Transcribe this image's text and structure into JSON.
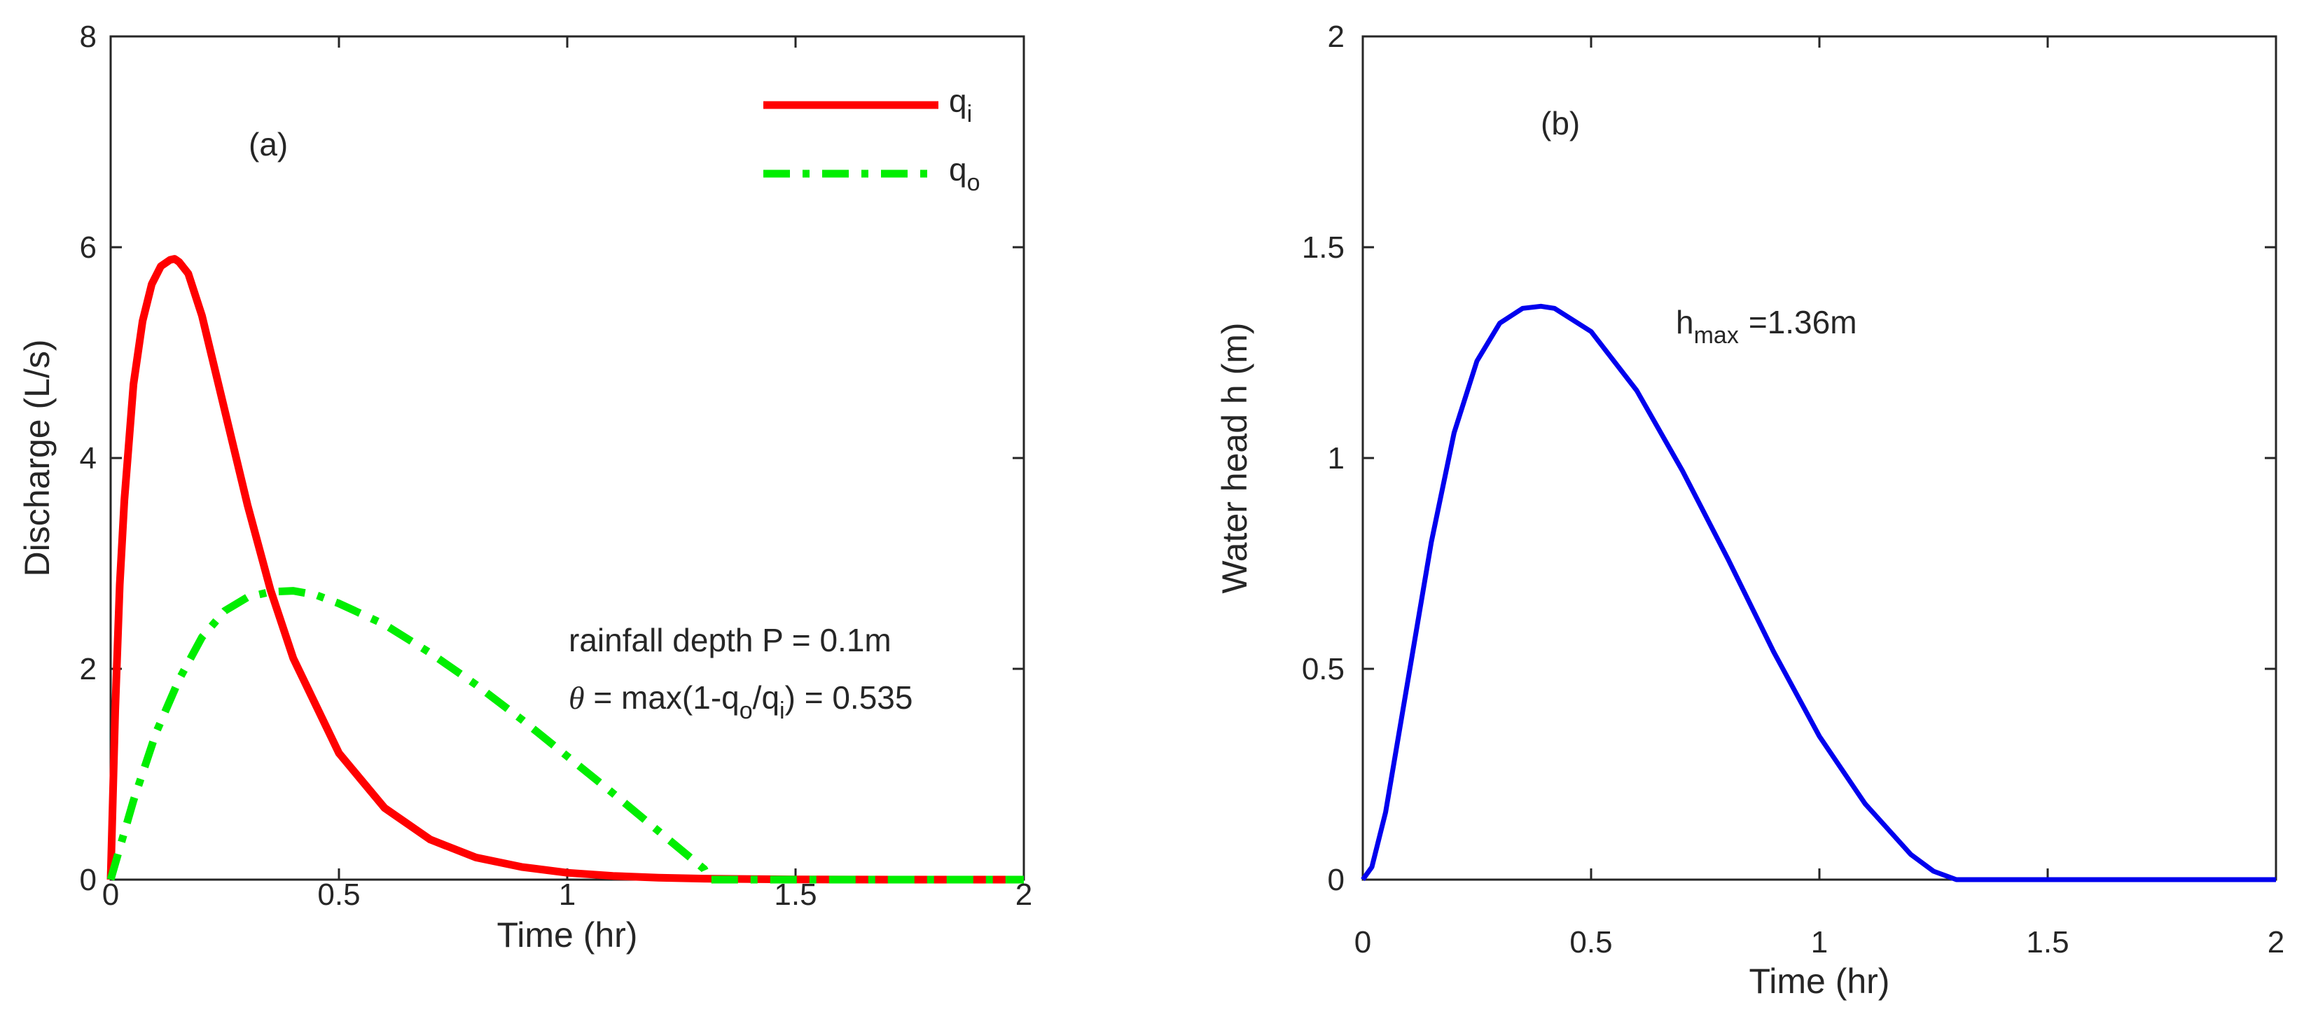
{
  "chart_data": [
    {
      "id": "a",
      "type": "line",
      "panel_label": "(a)",
      "xlabel": "Time (hr)",
      "ylabel": "Discharge (L/s)",
      "xlim": [
        0,
        2
      ],
      "ylim": [
        0,
        8
      ],
      "xticks": [
        0,
        0.5,
        1,
        1.5,
        2
      ],
      "xtick_labels": [
        "0",
        "0.5",
        "1",
        "1.5",
        "2"
      ],
      "yticks": [
        0,
        2,
        4,
        6,
        8
      ],
      "ytick_labels": [
        "0",
        "2",
        "4",
        "6",
        "8"
      ],
      "grid": false,
      "legend_position": "top-right",
      "series": [
        {
          "name": "q_i",
          "legend_main": "q",
          "legend_sub": "i",
          "color": "#ff0000",
          "style": "solid",
          "x": [
            0,
            0.01,
            0.02,
            0.03,
            0.05,
            0.07,
            0.09,
            0.11,
            0.13,
            0.14,
            0.15,
            0.17,
            0.2,
            0.25,
            0.3,
            0.35,
            0.4,
            0.5,
            0.6,
            0.7,
            0.8,
            0.9,
            1.0,
            1.1,
            1.2,
            1.3,
            1.5,
            1.75,
            2.0
          ],
          "y": [
            0,
            1.6,
            2.8,
            3.6,
            4.7,
            5.3,
            5.65,
            5.82,
            5.88,
            5.89,
            5.86,
            5.75,
            5.35,
            4.45,
            3.55,
            2.75,
            2.1,
            1.2,
            0.68,
            0.38,
            0.21,
            0.12,
            0.065,
            0.035,
            0.018,
            0.009,
            0.002,
            0.0,
            0.0
          ]
        },
        {
          "name": "q_o",
          "legend_main": "q",
          "legend_sub": "o",
          "color": "#00ee00",
          "style": "dashdot",
          "x": [
            0,
            0.02,
            0.05,
            0.1,
            0.15,
            0.2,
            0.25,
            0.3,
            0.35,
            0.4,
            0.45,
            0.5,
            0.6,
            0.7,
            0.8,
            0.9,
            1.0,
            1.1,
            1.2,
            1.3,
            1.31,
            1.5,
            1.75,
            2.0
          ],
          "y": [
            0,
            0.3,
            0.75,
            1.4,
            1.9,
            2.3,
            2.55,
            2.68,
            2.73,
            2.74,
            2.7,
            2.62,
            2.42,
            2.15,
            1.85,
            1.52,
            1.17,
            0.82,
            0.46,
            0.1,
            0.0,
            0.0,
            0.0,
            0.0
          ]
        }
      ],
      "annotations": {
        "line1": "rainfall depth P = 0.1m",
        "line2": {
          "theta": "θ",
          "t1": " = max(1-q",
          "s1": "o",
          "t2": "/q",
          "s2": "i",
          "t3": ") = 0.535"
        }
      }
    },
    {
      "id": "b",
      "type": "line",
      "panel_label": "(b)",
      "xlabel": "Time (hr)",
      "ylabel": "Water head h (m)",
      "xlim": [
        0,
        2
      ],
      "ylim": [
        0,
        2
      ],
      "xticks": [
        0,
        0.5,
        1,
        1.5,
        2
      ],
      "xtick_labels": [
        "0",
        "0.5",
        "1",
        "1.5",
        "2"
      ],
      "yticks": [
        0,
        0.5,
        1,
        1.5,
        2
      ],
      "ytick_labels": [
        "0",
        "0.5",
        "1",
        "1.5",
        "2"
      ],
      "grid": false,
      "series": [
        {
          "name": "h",
          "color": "#0000ee",
          "style": "solid",
          "x": [
            0,
            0.02,
            0.05,
            0.1,
            0.15,
            0.2,
            0.25,
            0.3,
            0.35,
            0.39,
            0.42,
            0.5,
            0.6,
            0.7,
            0.8,
            0.9,
            1.0,
            1.1,
            1.2,
            1.25,
            1.3,
            1.5,
            1.75,
            2.0
          ],
          "y": [
            0,
            0.03,
            0.16,
            0.48,
            0.8,
            1.06,
            1.23,
            1.32,
            1.355,
            1.36,
            1.355,
            1.3,
            1.16,
            0.97,
            0.76,
            0.54,
            0.34,
            0.18,
            0.06,
            0.02,
            0.0,
            0.0,
            0.0,
            0.0
          ]
        }
      ],
      "annotations": {
        "hmax_main": "h",
        "hmax_sub": "max",
        "hmax_value": "=1.36m"
      }
    }
  ]
}
